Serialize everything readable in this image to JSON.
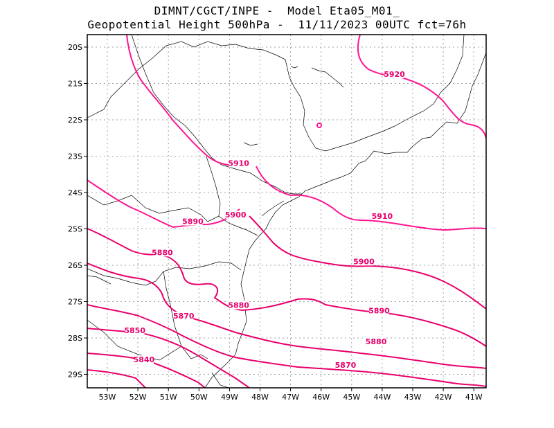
{
  "title": {
    "line1": "DIMNT/CGCT/INPE -  Model Eta05_M01_",
    "line2": "Geopotential Height 500hPa -  11/11/2023 00UTC fct=76h"
  },
  "axes": {
    "lat_ticks": [
      "20S",
      "21S",
      "22S",
      "23S",
      "24S",
      "25S",
      "26S",
      "27S",
      "28S",
      "29S"
    ],
    "lon_ticks": [
      "53W",
      "52W",
      "51W",
      "50W",
      "49W",
      "48W",
      "47W",
      "46W",
      "45W",
      "44W",
      "43W",
      "42W",
      "41W"
    ],
    "lat_values": [
      -20,
      -21,
      -22,
      -23,
      -24,
      -25,
      -26,
      -27,
      -28,
      -29
    ],
    "lon_values": [
      -53,
      -52,
      -51,
      -50,
      -49,
      -48,
      -47,
      -46,
      -45,
      -44,
      -43,
      -42,
      -41
    ]
  },
  "colors": {
    "high": "#ff1493",
    "low": "#e8006c",
    "coast": "#000000",
    "grid": "#a0a0a0"
  },
  "contours": [
    {
      "value": 5920,
      "label": "5920"
    },
    {
      "value": 5910,
      "label": "5910"
    },
    {
      "value": 5900,
      "label": "5900"
    },
    {
      "value": 5890,
      "label": "5890"
    },
    {
      "value": 5880,
      "label": "5880"
    },
    {
      "value": 5870,
      "label": "5870"
    },
    {
      "value": 5850,
      "label": "5850"
    },
    {
      "value": 5840,
      "label": "5840"
    }
  ],
  "contour_labels": [
    {
      "text": "5920",
      "lon": -43.6,
      "lat": -20.8
    },
    {
      "text": "5910",
      "lon": -48.7,
      "lat": -23.25
    },
    {
      "text": "5900",
      "lon": -48.8,
      "lat": -24.67
    },
    {
      "text": "5890",
      "lon": -50.2,
      "lat": -24.85
    },
    {
      "text": "5910",
      "lon": -44.0,
      "lat": -24.7
    },
    {
      "text": "5880",
      "lon": -51.2,
      "lat": -25.7
    },
    {
      "text": "5900",
      "lon": -44.6,
      "lat": -25.95
    },
    {
      "text": "5880",
      "lon": -48.7,
      "lat": -27.15
    },
    {
      "text": "5890",
      "lon": -44.1,
      "lat": -27.3
    },
    {
      "text": "5870",
      "lon": -50.5,
      "lat": -27.45
    },
    {
      "text": "5850",
      "lon": -52.1,
      "lat": -27.85
    },
    {
      "text": "5880",
      "lon": -44.2,
      "lat": -28.15
    },
    {
      "text": "5840",
      "lon": -51.8,
      "lat": -28.65
    },
    {
      "text": "5870",
      "lon": -45.2,
      "lat": -28.8
    }
  ]
}
